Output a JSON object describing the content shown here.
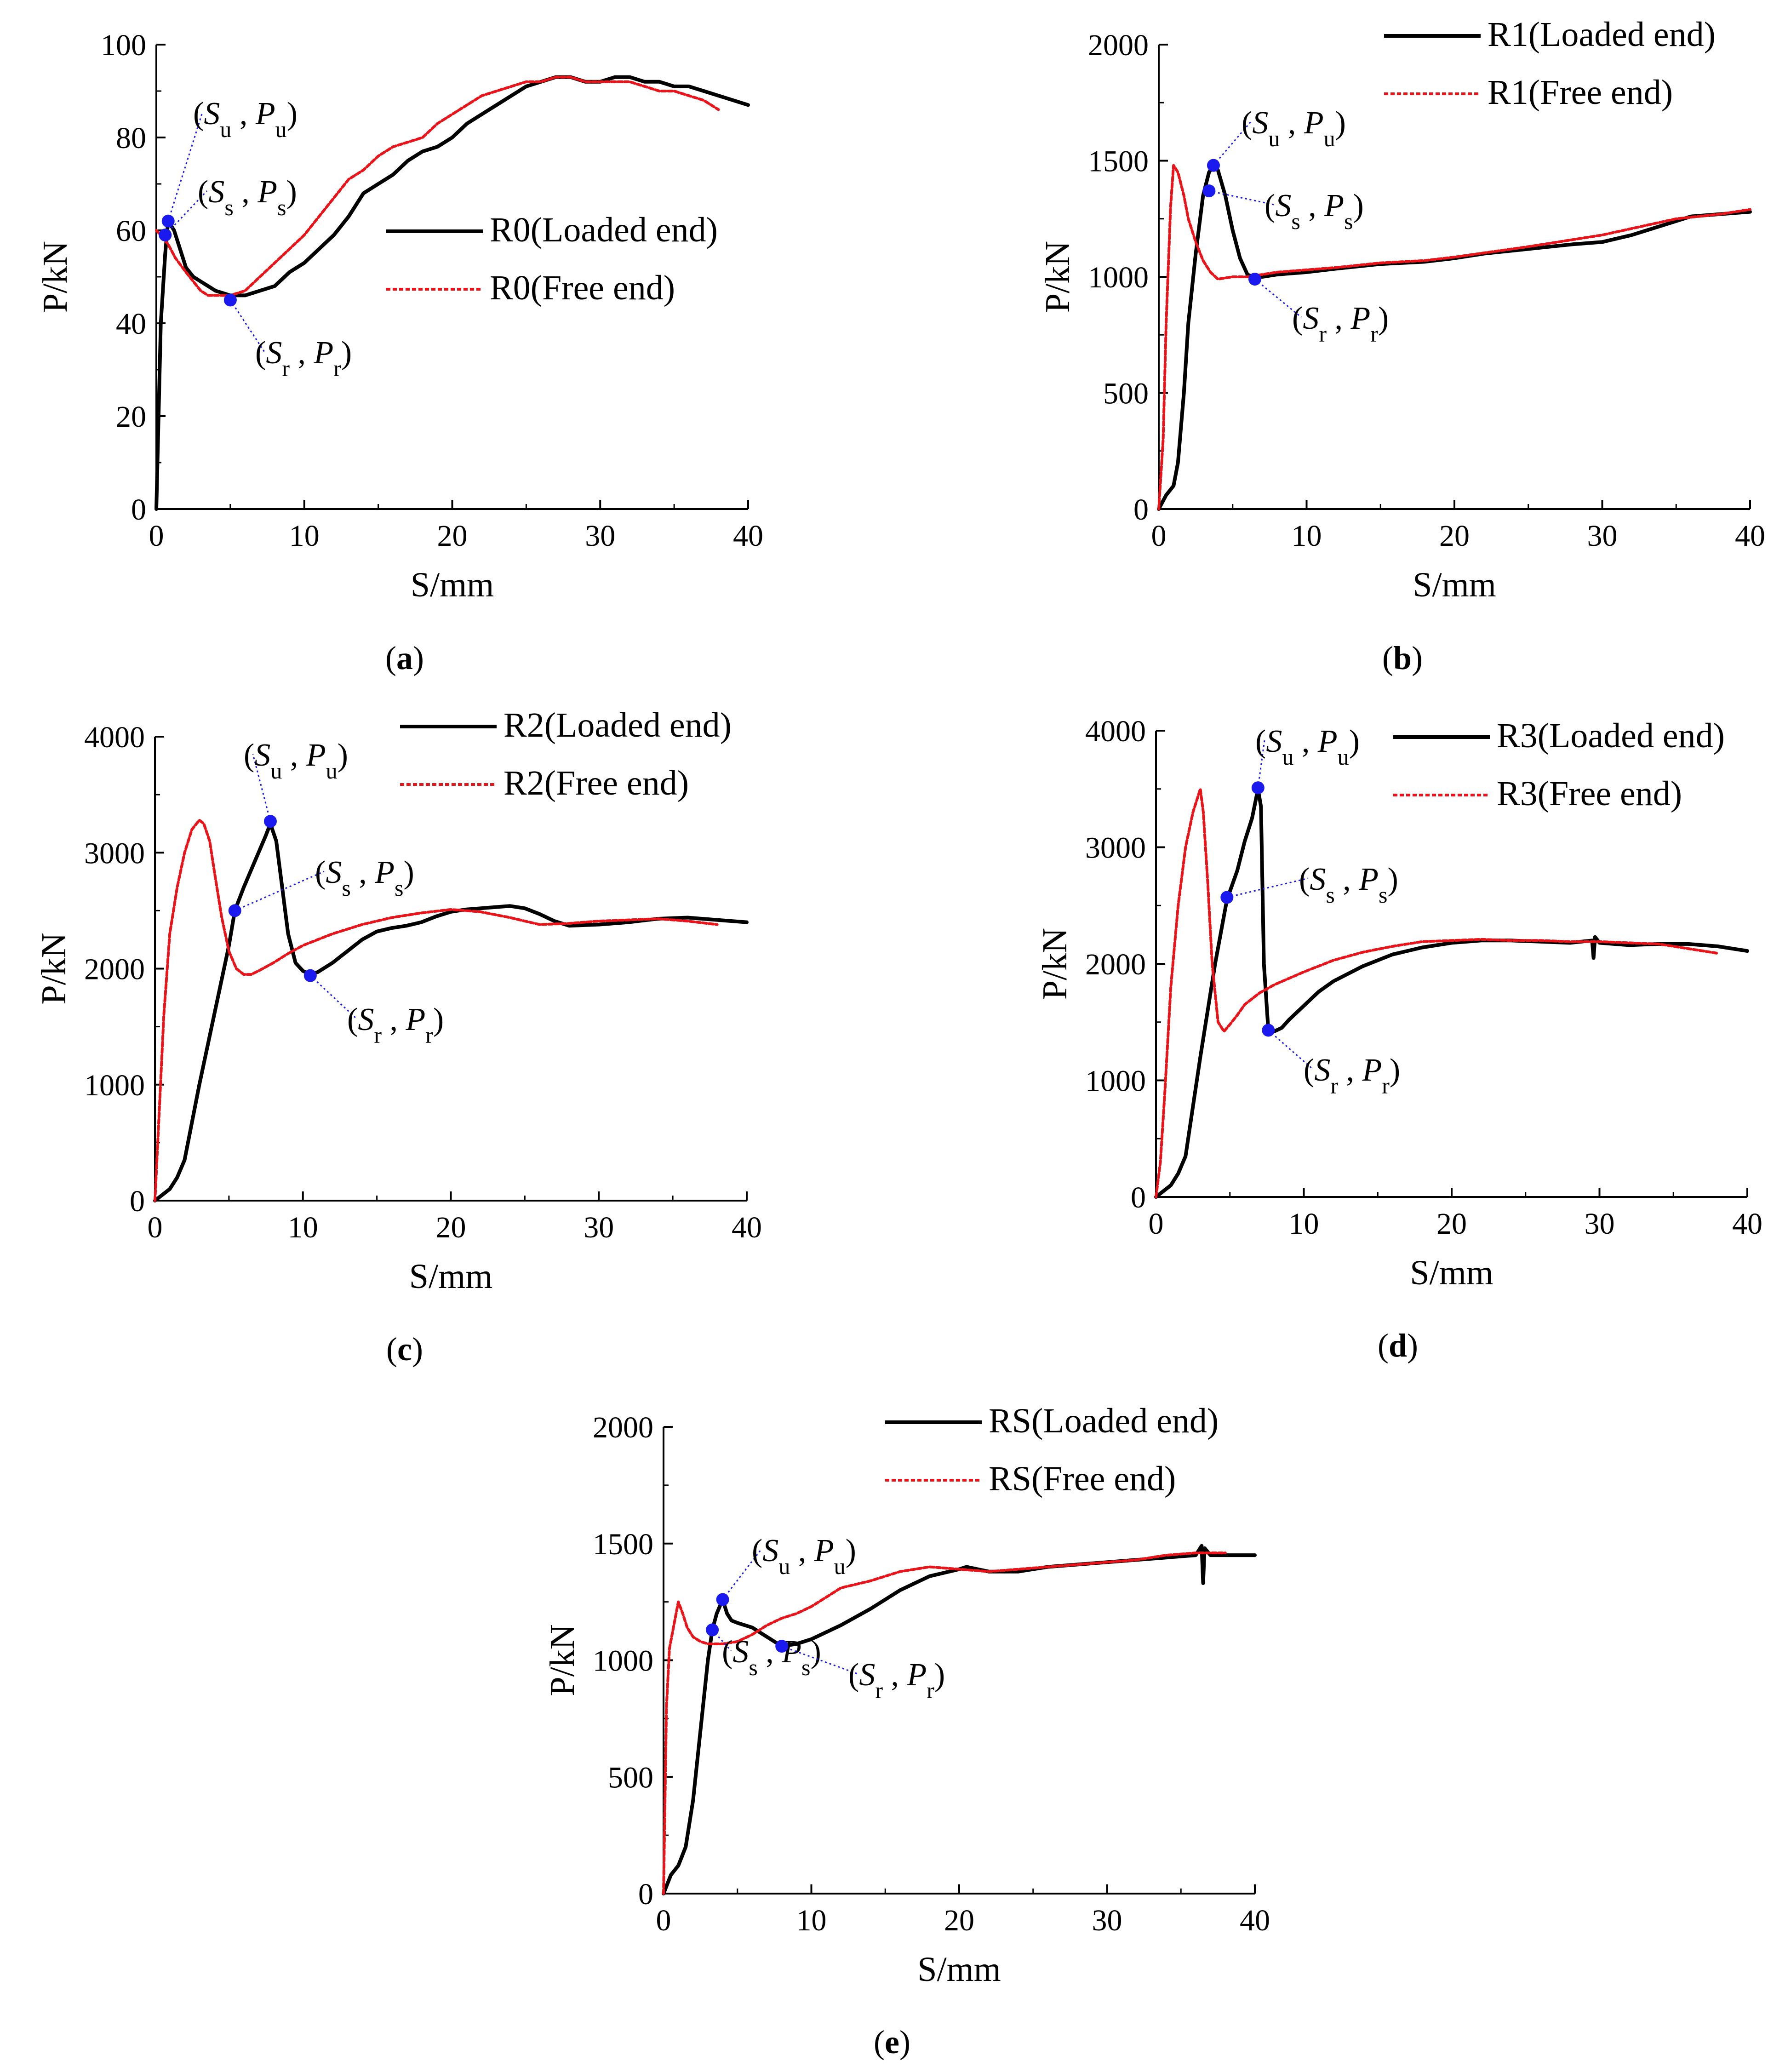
{
  "colors": {
    "loaded": "#000000",
    "free": "#e8141a",
    "point": "#1a1aee",
    "leader": "#1a1aee"
  },
  "chart_data": [
    {
      "id": "a",
      "type": "line",
      "caption": "a",
      "xlabel": "S/mm",
      "ylabel": "P/kN",
      "xlim": [
        0,
        40
      ],
      "ylim": [
        0,
        100
      ],
      "xticks": [
        "0",
        "10",
        "20",
        "30",
        "40"
      ],
      "yticks": [
        "0",
        "20",
        "40",
        "60",
        "80",
        "100"
      ],
      "series": [
        {
          "name": "R0(Loaded end)",
          "role": "loaded",
          "x": [
            0,
            0.3,
            0.6,
            0.8,
            1.2,
            1.6,
            2,
            2.5,
            3,
            3.5,
            4,
            5,
            6,
            7,
            8,
            9,
            10,
            11,
            12,
            13,
            14,
            15,
            16,
            17,
            18,
            19,
            20,
            21,
            22,
            23,
            24,
            25,
            26,
            27,
            28,
            29,
            30,
            31,
            32,
            33,
            34,
            35,
            36,
            37,
            38,
            39,
            40
          ],
          "y": [
            0,
            40,
            55,
            62,
            60,
            56,
            52,
            50,
            49,
            48,
            47,
            46,
            46,
            47,
            48,
            51,
            53,
            56,
            59,
            63,
            68,
            70,
            72,
            75,
            77,
            78,
            80,
            83,
            85,
            87,
            89,
            91,
            92,
            93,
            93,
            92,
            92,
            93,
            93,
            92,
            92,
            91,
            91,
            90,
            89,
            88,
            87
          ]
        },
        {
          "name": "R0(Free end)",
          "role": "free",
          "x": [
            0,
            0.3,
            0.8,
            1.3,
            2,
            2.5,
            3,
            3.5,
            4,
            5,
            6,
            7,
            8,
            9,
            10,
            11,
            12,
            13,
            14,
            15,
            16,
            17,
            18,
            19,
            20,
            21,
            22,
            23,
            24,
            25,
            26,
            27,
            28,
            29,
            30,
            31,
            32,
            33,
            34,
            35,
            36,
            37,
            38
          ],
          "y": [
            60,
            59,
            57,
            54,
            51,
            49,
            47,
            46,
            46,
            46,
            47,
            50,
            53,
            56,
            59,
            63,
            67,
            71,
            73,
            76,
            78,
            79,
            80,
            83,
            85,
            87,
            89,
            90,
            91,
            92,
            92,
            93,
            93,
            92,
            92,
            92,
            92,
            91,
            90,
            90,
            89,
            88,
            86
          ]
        }
      ],
      "points": [
        {
          "label": "Su,Pu",
          "x": 0.8,
          "y": 62
        },
        {
          "label": "Ss,Ps",
          "x": 0.6,
          "y": 59
        },
        {
          "label": "Sr,Pr",
          "x": 5,
          "y": 45
        }
      ],
      "legend": "center-right"
    },
    {
      "id": "b",
      "type": "line",
      "caption": "b",
      "xlabel": "S/mm",
      "ylabel": "P/kN",
      "xlim": [
        0,
        40
      ],
      "ylim": [
        0,
        2000
      ],
      "xticks": [
        "0",
        "10",
        "20",
        "30",
        "40"
      ],
      "yticks": [
        "0",
        "500",
        "1000",
        "1500",
        "2000"
      ],
      "series": [
        {
          "name": "R1(Loaded end)",
          "role": "loaded",
          "x": [
            0,
            0.5,
            1,
            1.3,
            1.7,
            2,
            2.5,
            3,
            3.4,
            3.7,
            4,
            4.5,
            5,
            5.5,
            6,
            6.5,
            7,
            8,
            10,
            12,
            15,
            18,
            20,
            22,
            25,
            28,
            30,
            32,
            34,
            36,
            38,
            40
          ],
          "y": [
            0,
            60,
            100,
            200,
            500,
            800,
            1100,
            1350,
            1450,
            1480,
            1460,
            1350,
            1200,
            1080,
            1010,
            995,
            1000,
            1010,
            1020,
            1035,
            1055,
            1065,
            1080,
            1100,
            1120,
            1140,
            1150,
            1180,
            1220,
            1260,
            1270,
            1280
          ]
        },
        {
          "name": "R1(Free end)",
          "role": "free",
          "x": [
            0,
            0.3,
            0.5,
            0.8,
            1,
            1.3,
            1.7,
            2,
            2.5,
            3,
            3.5,
            4,
            5,
            6,
            7,
            8,
            10,
            12,
            15,
            18,
            20,
            25,
            30,
            35,
            38,
            40
          ],
          "y": [
            0,
            300,
            800,
            1300,
            1480,
            1450,
            1350,
            1250,
            1150,
            1070,
            1020,
            990,
            1000,
            1000,
            1010,
            1020,
            1030,
            1040,
            1060,
            1070,
            1085,
            1130,
            1180,
            1250,
            1270,
            1290
          ]
        }
      ],
      "points": [
        {
          "label": "Su,Pu",
          "x": 3.7,
          "y": 1480
        },
        {
          "label": "Ss,Ps",
          "x": 3.4,
          "y": 1370
        },
        {
          "label": "Sr,Pr",
          "x": 6.5,
          "y": 990
        }
      ],
      "legend": "top-right"
    },
    {
      "id": "c",
      "type": "line",
      "caption": "c",
      "xlabel": "S/mm",
      "ylabel": "P/kN",
      "xlim": [
        0,
        40
      ],
      "ylim": [
        0,
        4000
      ],
      "xticks": [
        "0",
        "10",
        "20",
        "30",
        "40"
      ],
      "yticks": [
        "0",
        "1000",
        "2000",
        "3000",
        "4000"
      ],
      "series": [
        {
          "name": "R2(Loaded end)",
          "role": "loaded",
          "x": [
            0,
            0.5,
            1,
            1.5,
            2,
            3,
            4,
            5,
            5.4,
            6,
            7,
            7.5,
            7.8,
            8.2,
            8.6,
            9,
            9.5,
            10,
            10.5,
            11,
            12,
            13,
            14,
            15,
            16,
            17,
            18,
            19,
            20,
            21,
            22,
            23,
            24,
            25,
            26,
            27,
            28,
            30,
            32,
            34,
            36,
            38,
            40
          ],
          "y": [
            0,
            50,
            100,
            200,
            350,
            1000,
            1600,
            2200,
            2500,
            2700,
            3000,
            3150,
            3250,
            3100,
            2700,
            2300,
            2050,
            1980,
            1950,
            1970,
            2050,
            2150,
            2250,
            2320,
            2350,
            2370,
            2400,
            2450,
            2490,
            2510,
            2520,
            2530,
            2540,
            2520,
            2470,
            2410,
            2370,
            2380,
            2400,
            2430,
            2440,
            2420,
            2400
          ]
        },
        {
          "name": "R2(Free end)",
          "role": "free",
          "x": [
            0,
            0.3,
            0.6,
            1,
            1.5,
            2,
            2.5,
            3,
            3.3,
            3.7,
            4,
            4.5,
            5,
            5.5,
            6,
            6.5,
            7,
            8,
            9,
            10,
            11,
            12,
            14,
            16,
            18,
            20,
            22,
            24,
            26,
            28,
            30,
            32,
            34,
            36,
            38
          ],
          "y": [
            0,
            800,
            1600,
            2300,
            2700,
            3000,
            3200,
            3280,
            3250,
            3100,
            2850,
            2450,
            2150,
            2000,
            1950,
            1950,
            1980,
            2050,
            2130,
            2200,
            2250,
            2300,
            2380,
            2440,
            2480,
            2510,
            2490,
            2440,
            2380,
            2390,
            2410,
            2420,
            2430,
            2410,
            2380
          ]
        }
      ],
      "points": [
        {
          "label": "Su,Pu",
          "x": 7.8,
          "y": 3270
        },
        {
          "label": "Ss,Ps",
          "x": 5.4,
          "y": 2500
        },
        {
          "label": "Sr,Pr",
          "x": 10.5,
          "y": 1940
        }
      ],
      "legend": "top-right"
    },
    {
      "id": "d",
      "type": "line",
      "caption": "d",
      "xlabel": "S/mm",
      "ylabel": "P/kN",
      "xlim": [
        0,
        40
      ],
      "ylim": [
        0,
        4000
      ],
      "xticks": [
        "0",
        "10",
        "20",
        "30",
        "40"
      ],
      "yticks": [
        "0",
        "1000",
        "2000",
        "3000",
        "4000"
      ],
      "series": [
        {
          "name": "R3(Loaded end)",
          "role": "loaded",
          "x": [
            0,
            0.5,
            1,
            1.5,
            2,
            3,
            4,
            4.8,
            5.5,
            6,
            6.5,
            6.9,
            7.1,
            7.3,
            7.6,
            8,
            8.5,
            9,
            10,
            11,
            12,
            14,
            16,
            18,
            20,
            22,
            24,
            26,
            28,
            29.5,
            29.6,
            29.7,
            30,
            32,
            34,
            36,
            38,
            40
          ],
          "y": [
            0,
            50,
            100,
            200,
            350,
            1200,
            2000,
            2550,
            2800,
            3050,
            3250,
            3500,
            3350,
            2000,
            1430,
            1420,
            1450,
            1520,
            1640,
            1760,
            1850,
            1980,
            2080,
            2140,
            2180,
            2200,
            2200,
            2190,
            2180,
            2200,
            2050,
            2230,
            2180,
            2160,
            2170,
            2170,
            2150,
            2110
          ]
        },
        {
          "name": "R3(Free end)",
          "role": "free",
          "x": [
            0,
            0.3,
            0.6,
            1,
            1.5,
            2,
            2.5,
            3,
            3.2,
            3.5,
            3.8,
            4.2,
            4.6,
            5,
            5.5,
            6,
            7,
            8,
            10,
            12,
            14,
            16,
            18,
            20,
            22,
            24,
            26,
            28,
            30,
            32,
            34,
            36,
            38
          ],
          "y": [
            0,
            300,
            900,
            1800,
            2500,
            3000,
            3300,
            3500,
            3300,
            2700,
            2000,
            1500,
            1420,
            1480,
            1560,
            1650,
            1750,
            1820,
            1930,
            2030,
            2100,
            2150,
            2190,
            2200,
            2210,
            2200,
            2200,
            2190,
            2190,
            2180,
            2170,
            2130,
            2090
          ]
        }
      ],
      "points": [
        {
          "label": "Su,Pu",
          "x": 6.9,
          "y": 3510
        },
        {
          "label": "Ss,Ps",
          "x": 4.8,
          "y": 2570
        },
        {
          "label": "Sr,Pr",
          "x": 7.6,
          "y": 1430
        }
      ],
      "legend": "top-right"
    },
    {
      "id": "e",
      "type": "line",
      "caption": "e",
      "xlabel": "S/mm",
      "ylabel": "P/kN",
      "xlim": [
        0,
        40
      ],
      "ylim": [
        0,
        2000
      ],
      "xticks": [
        "0",
        "10",
        "20",
        "30",
        "40"
      ],
      "yticks": [
        "0",
        "500",
        "1000",
        "1500",
        "2000"
      ],
      "series": [
        {
          "name": "RS(Loaded end)",
          "role": "loaded",
          "x": [
            0,
            0.5,
            1,
            1.5,
            2,
            2.5,
            3,
            3.3,
            3.6,
            4,
            4.3,
            4.6,
            5,
            6,
            7,
            8,
            9,
            10,
            12,
            14,
            16,
            18,
            20,
            20.5,
            22,
            24,
            25,
            26,
            28,
            30,
            32,
            34,
            36,
            36.4,
            36.5,
            36.6,
            37,
            38,
            40
          ],
          "y": [
            0,
            80,
            120,
            200,
            400,
            700,
            1000,
            1130,
            1200,
            1260,
            1200,
            1170,
            1160,
            1140,
            1100,
            1060,
            1070,
            1090,
            1150,
            1220,
            1300,
            1360,
            1390,
            1400,
            1380,
            1380,
            1390,
            1400,
            1410,
            1420,
            1430,
            1440,
            1450,
            1490,
            1330,
            1480,
            1450,
            1450,
            1450
          ]
        },
        {
          "name": "RS(Free end)",
          "role": "free",
          "x": [
            0,
            0.2,
            0.4,
            0.7,
            1,
            1.3,
            1.6,
            2,
            2.5,
            3,
            4,
            5,
            6,
            7,
            8,
            9,
            10,
            11,
            12,
            14,
            16,
            18,
            20,
            22,
            24,
            26,
            28,
            30,
            32,
            34,
            36,
            38
          ],
          "y": [
            0,
            800,
            1050,
            1150,
            1250,
            1200,
            1140,
            1100,
            1080,
            1070,
            1070,
            1080,
            1110,
            1150,
            1180,
            1200,
            1230,
            1270,
            1310,
            1340,
            1380,
            1400,
            1390,
            1380,
            1390,
            1400,
            1410,
            1420,
            1430,
            1450,
            1460,
            1460
          ]
        }
      ],
      "points": [
        {
          "label": "Su,Pu",
          "x": 4,
          "y": 1260
        },
        {
          "label": "Ss,Ps",
          "x": 3.3,
          "y": 1130
        },
        {
          "label": "Sr,Pr",
          "x": 8,
          "y": 1060
        }
      ],
      "legend": "top-right"
    }
  ]
}
